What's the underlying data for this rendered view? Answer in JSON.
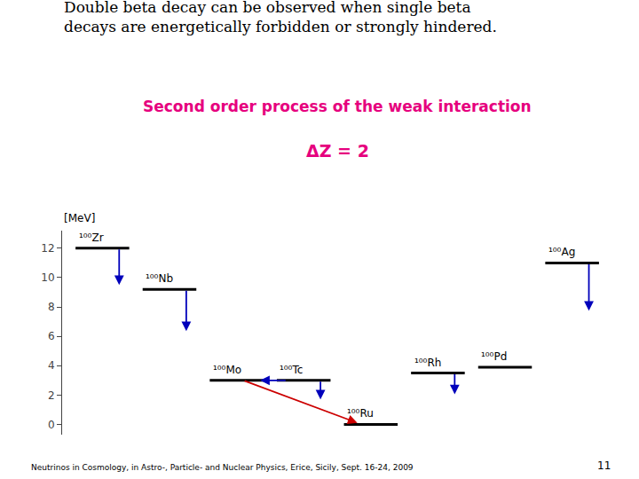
{
  "chart_data": {
    "type": "energy_levels",
    "title": [
      "Double beta decay can be observed when single beta",
      "decays are energetically forbidden or strongly hindered."
    ],
    "subtitle": {
      "text": "Second order process of the weak interaction",
      "color": "#e6007e"
    },
    "formula": {
      "text": "ΔZ = 2",
      "color": "#e6007e"
    },
    "footer": "Neutrinos in Cosmology, in Astro-, Particle- and Nuclear Physics, Erice, Sicily, Sept. 16-24, 2009",
    "page": "11",
    "ylabel": "[MeV]",
    "ylim": [
      -0.7,
      13.2
    ],
    "yticks": [
      0,
      2,
      4,
      6,
      8,
      10,
      12
    ],
    "grid": false,
    "color": "#000000",
    "levels": [
      {
        "label": "¹⁰⁰Zr",
        "value": 12.0
      },
      {
        "label": "¹⁰⁰Nb",
        "value": 9.2
      },
      {
        "label": "¹⁰⁰Mo",
        "value": 3.0
      },
      {
        "label": "¹⁰⁰Tc",
        "value": 3.0
      },
      {
        "label": "¹⁰⁰Ru",
        "value": 0.0
      },
      {
        "label": "¹⁰⁰Rh",
        "value": 3.5
      },
      {
        "label": "¹⁰⁰Pd",
        "value": 3.9
      },
      {
        "label": "¹⁰⁰Ag",
        "value": 11.0
      }
    ],
    "arrows": [
      {
        "from": "¹⁰⁰Zr",
        "y0": 12.0,
        "y1": 9.5,
        "color": "#0000bb"
      },
      {
        "from": "¹⁰⁰Nb",
        "y0": 9.2,
        "y1": 6.35,
        "color": "#0000bb"
      },
      {
        "from": "¹⁰⁰Tc",
        "y0": 3.0,
        "y1": 1.7,
        "color": "#0000bb"
      },
      {
        "from": "¹⁰⁰Rh",
        "y0": 3.5,
        "y1": 2.05,
        "color": "#0000bb"
      },
      {
        "from": "¹⁰⁰Ag",
        "y0": 11.0,
        "y1": 7.75,
        "color": "#0000bb"
      },
      {
        "from": "¹⁰⁰Tc",
        "to": "¹⁰⁰Mo",
        "y0": 3.0,
        "y1": 3.0,
        "color": "#0000bb"
      },
      {
        "from": "¹⁰⁰Mo",
        "to": "¹⁰⁰Ru",
        "y0": 3.0,
        "y1": 0.1,
        "color": "#cc0000"
      }
    ]
  }
}
